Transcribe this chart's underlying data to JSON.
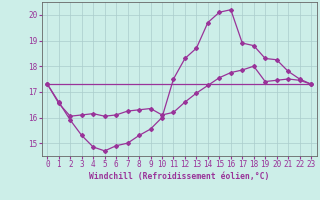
{
  "xlabel": "Windchill (Refroidissement éolien,°C)",
  "bg_color": "#cceee8",
  "grid_color": "#aacccc",
  "line_color": "#993399",
  "xlim": [
    -0.5,
    23.5
  ],
  "ylim": [
    14.5,
    20.5
  ],
  "yticks": [
    15,
    16,
    17,
    18,
    19,
    20
  ],
  "xticks": [
    0,
    1,
    2,
    3,
    4,
    5,
    6,
    7,
    8,
    9,
    10,
    11,
    12,
    13,
    14,
    15,
    16,
    17,
    18,
    19,
    20,
    21,
    22,
    23
  ],
  "line1": {
    "points": [
      [
        0,
        17.3
      ],
      [
        1,
        16.6
      ],
      [
        2,
        15.9
      ],
      [
        3,
        15.3
      ],
      [
        4,
        14.85
      ],
      [
        5,
        14.7
      ],
      [
        6,
        14.9
      ],
      [
        7,
        15.0
      ],
      [
        8,
        15.3
      ],
      [
        9,
        15.55
      ],
      [
        10,
        16.0
      ],
      [
        11,
        17.5
      ],
      [
        12,
        18.3
      ],
      [
        13,
        18.7
      ],
      [
        14,
        19.7
      ],
      [
        15,
        20.1
      ],
      [
        16,
        20.2
      ],
      [
        17,
        18.9
      ],
      [
        18,
        18.8
      ],
      [
        19,
        18.3
      ],
      [
        20,
        18.25
      ],
      [
        21,
        17.8
      ],
      [
        22,
        17.5
      ],
      [
        23,
        17.3
      ]
    ]
  },
  "line2": {
    "points": [
      [
        0,
        17.3
      ],
      [
        1,
        16.55
      ],
      [
        2,
        16.05
      ],
      [
        3,
        16.1
      ],
      [
        4,
        16.15
      ],
      [
        5,
        16.05
      ],
      [
        6,
        16.1
      ],
      [
        7,
        16.25
      ],
      [
        8,
        16.3
      ],
      [
        9,
        16.35
      ],
      [
        10,
        16.1
      ],
      [
        11,
        16.2
      ],
      [
        12,
        16.6
      ],
      [
        13,
        16.95
      ],
      [
        14,
        17.25
      ],
      [
        15,
        17.55
      ],
      [
        16,
        17.75
      ],
      [
        17,
        17.85
      ],
      [
        18,
        18.0
      ],
      [
        19,
        17.4
      ],
      [
        20,
        17.45
      ],
      [
        21,
        17.5
      ],
      [
        22,
        17.45
      ],
      [
        23,
        17.3
      ]
    ]
  },
  "line3": {
    "points": [
      [
        0,
        17.3
      ],
      [
        23,
        17.3
      ]
    ]
  }
}
